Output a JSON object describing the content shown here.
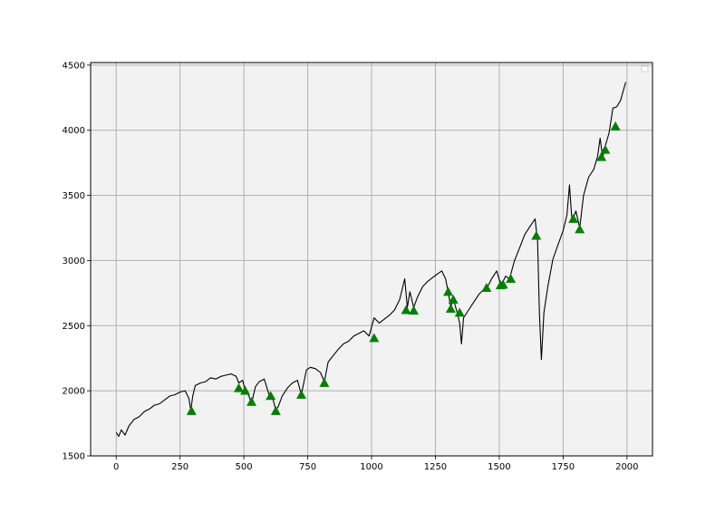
{
  "chart_data": {
    "type": "line",
    "title": "",
    "xlabel": "",
    "ylabel": "",
    "xlim": [
      -100,
      2100
    ],
    "ylim": [
      1500,
      4520
    ],
    "x_ticks": [
      0,
      250,
      500,
      750,
      1000,
      1250,
      1500,
      1750,
      2000
    ],
    "x_tick_labels": [
      "0",
      "250",
      "500",
      "750",
      "1000",
      "1250",
      "1500",
      "1750",
      "2000"
    ],
    "y_ticks": [
      1500,
      2000,
      2500,
      3000,
      3500,
      4000,
      4500
    ],
    "y_tick_labels": [
      "1500",
      "2000",
      "2500",
      "3000",
      "3500",
      "4000",
      "4500"
    ],
    "grid": true,
    "legend": "top-right",
    "background_color": "#f2f2f2",
    "line_color": "#000000",
    "marker_color": "#008000",
    "series": [
      {
        "type": "line",
        "color": "#000000",
        "x": [
          0,
          10,
          20,
          35,
          50,
          70,
          90,
          110,
          130,
          150,
          170,
          190,
          210,
          230,
          250,
          270,
          285,
          292,
          300,
          310,
          330,
          350,
          370,
          390,
          410,
          430,
          450,
          470,
          480,
          495,
          505,
          520,
          530,
          545,
          560,
          580,
          600,
          612,
          625,
          635,
          650,
          670,
          690,
          710,
          725,
          745,
          760,
          780,
          800,
          815,
          830,
          850,
          870,
          890,
          910,
          930,
          950,
          970,
          990,
          1010,
          1030,
          1050,
          1070,
          1090,
          1110,
          1130,
          1140,
          1150,
          1165,
          1180,
          1200,
          1220,
          1240,
          1260,
          1275,
          1290,
          1300,
          1310,
          1320,
          1335,
          1345,
          1352,
          1360,
          1380,
          1400,
          1420,
          1440,
          1455,
          1470,
          1490,
          1505,
          1515,
          1525,
          1540,
          1560,
          1580,
          1600,
          1620,
          1640,
          1650,
          1657,
          1665,
          1675,
          1690,
          1710,
          1730,
          1750,
          1765,
          1775,
          1785,
          1800,
          1815,
          1830,
          1850,
          1870,
          1885,
          1895,
          1905,
          1915,
          1930,
          1945,
          1960,
          1975,
          1985,
          1995
        ],
        "y": [
          1680,
          1650,
          1700,
          1660,
          1730,
          1780,
          1800,
          1840,
          1860,
          1890,
          1900,
          1930,
          1960,
          1970,
          1990,
          2000,
          1940,
          1850,
          1960,
          2040,
          2060,
          2070,
          2100,
          2090,
          2110,
          2120,
          2130,
          2110,
          2060,
          2080,
          2010,
          1960,
          1900,
          2030,
          2070,
          2090,
          1960,
          1950,
          1850,
          1880,
          1960,
          2020,
          2060,
          2080,
          1970,
          2160,
          2180,
          2170,
          2140,
          2070,
          2220,
          2270,
          2320,
          2360,
          2380,
          2420,
          2440,
          2460,
          2420,
          2560,
          2520,
          2550,
          2580,
          2620,
          2700,
          2860,
          2640,
          2760,
          2640,
          2720,
          2800,
          2840,
          2870,
          2900,
          2920,
          2860,
          2760,
          2640,
          2710,
          2600,
          2520,
          2360,
          2560,
          2620,
          2680,
          2740,
          2780,
          2800,
          2860,
          2920,
          2820,
          2840,
          2880,
          2860,
          3000,
          3100,
          3200,
          3260,
          3320,
          3150,
          2600,
          2240,
          2600,
          2800,
          3010,
          3120,
          3230,
          3350,
          3580,
          3300,
          3380,
          3250,
          3500,
          3640,
          3700,
          3800,
          3940,
          3790,
          3880,
          3980,
          4170,
          4180,
          4230,
          4300,
          4370
        ]
      },
      {
        "type": "scatter",
        "marker": "triangle-up",
        "color": "#008000",
        "x": [
          295,
          480,
          505,
          530,
          605,
          625,
          725,
          815,
          1010,
          1135,
          1165,
          1300,
          1310,
          1320,
          1345,
          1450,
          1505,
          1515,
          1545,
          1645,
          1790,
          1815,
          1900,
          1915,
          1955
        ],
        "y": [
          1845,
          2020,
          2000,
          1915,
          1960,
          1845,
          1970,
          2060,
          2405,
          2620,
          2615,
          2760,
          2630,
          2700,
          2600,
          2790,
          2810,
          2815,
          2860,
          3190,
          3320,
          3240,
          3795,
          3850,
          4030
        ]
      }
    ]
  }
}
